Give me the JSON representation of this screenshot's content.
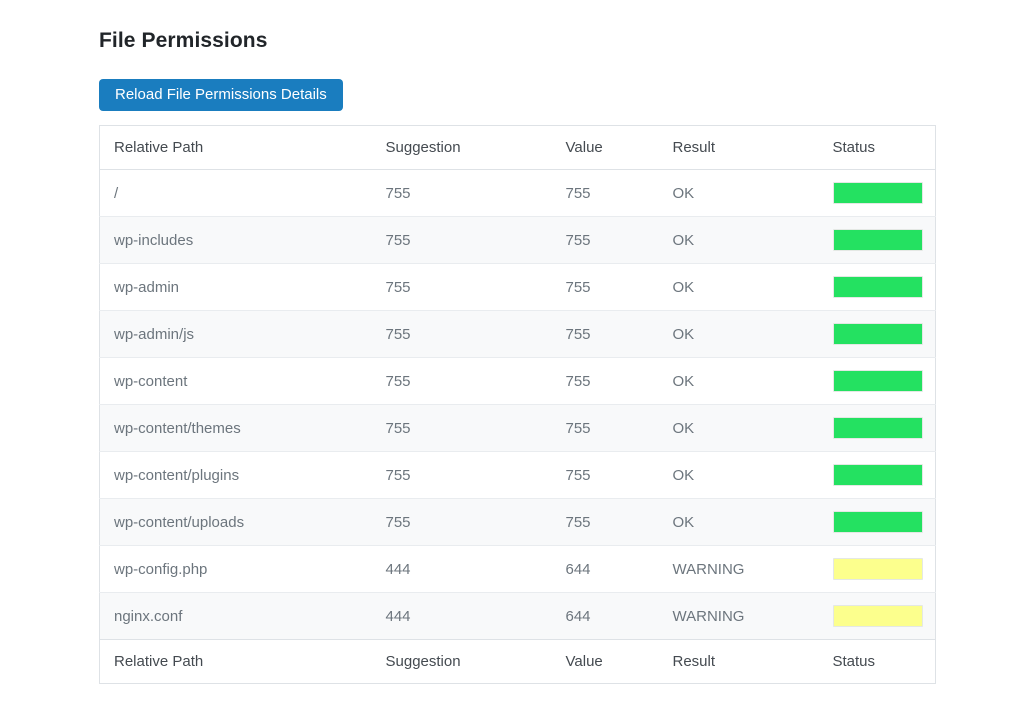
{
  "page": {
    "title": "File Permissions",
    "reload_button_label": "Reload File Permissions Details"
  },
  "table": {
    "columns": [
      "Relative Path",
      "Suggestion",
      "Value",
      "Result",
      "Status"
    ],
    "rows": [
      {
        "path": "/",
        "suggestion": "755",
        "value": "755",
        "result": "OK",
        "status": "ok"
      },
      {
        "path": "wp-includes",
        "suggestion": "755",
        "value": "755",
        "result": "OK",
        "status": "ok"
      },
      {
        "path": "wp-admin",
        "suggestion": "755",
        "value": "755",
        "result": "OK",
        "status": "ok"
      },
      {
        "path": "wp-admin/js",
        "suggestion": "755",
        "value": "755",
        "result": "OK",
        "status": "ok"
      },
      {
        "path": "wp-content",
        "suggestion": "755",
        "value": "755",
        "result": "OK",
        "status": "ok"
      },
      {
        "path": "wp-content/themes",
        "suggestion": "755",
        "value": "755",
        "result": "OK",
        "status": "ok"
      },
      {
        "path": "wp-content/plugins",
        "suggestion": "755",
        "value": "755",
        "result": "OK",
        "status": "ok"
      },
      {
        "path": "wp-content/uploads",
        "suggestion": "755",
        "value": "755",
        "result": "OK",
        "status": "ok"
      },
      {
        "path": "wp-config.php",
        "suggestion": "444",
        "value": "644",
        "result": "WARNING",
        "status": "warning"
      },
      {
        "path": "nginx.conf",
        "suggestion": "444",
        "value": "644",
        "result": "WARNING",
        "status": "warning"
      }
    ]
  },
  "colors": {
    "button_blue": "#1a7dbf",
    "ok_status": "#24e161",
    "warning_status": "#fcff8d"
  }
}
